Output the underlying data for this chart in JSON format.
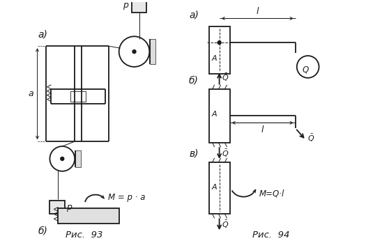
{
  "fig_width": 5.25,
  "fig_height": 3.59,
  "dpi": 100,
  "bg_color": "#ffffff",
  "line_color": "#1a1a1a",
  "label_93": "Рис.  93",
  "label_94": "Рис.  94",
  "label_a_93": "а)",
  "label_b_93": "б)",
  "label_a_94": "а)",
  "label_b_94": "б)",
  "label_v_94": "в)",
  "label_a_dim_93": "а",
  "label_p_93_top": "р",
  "label_p_93_bot": "р",
  "label_m_93": "M = р · а",
  "label_l_94_top": "l",
  "label_l_94_b": "l",
  "label_q_94_a": "Q",
  "label_m_94": "M=Q·l",
  "lw": 1.3,
  "lw_thin": 0.7
}
